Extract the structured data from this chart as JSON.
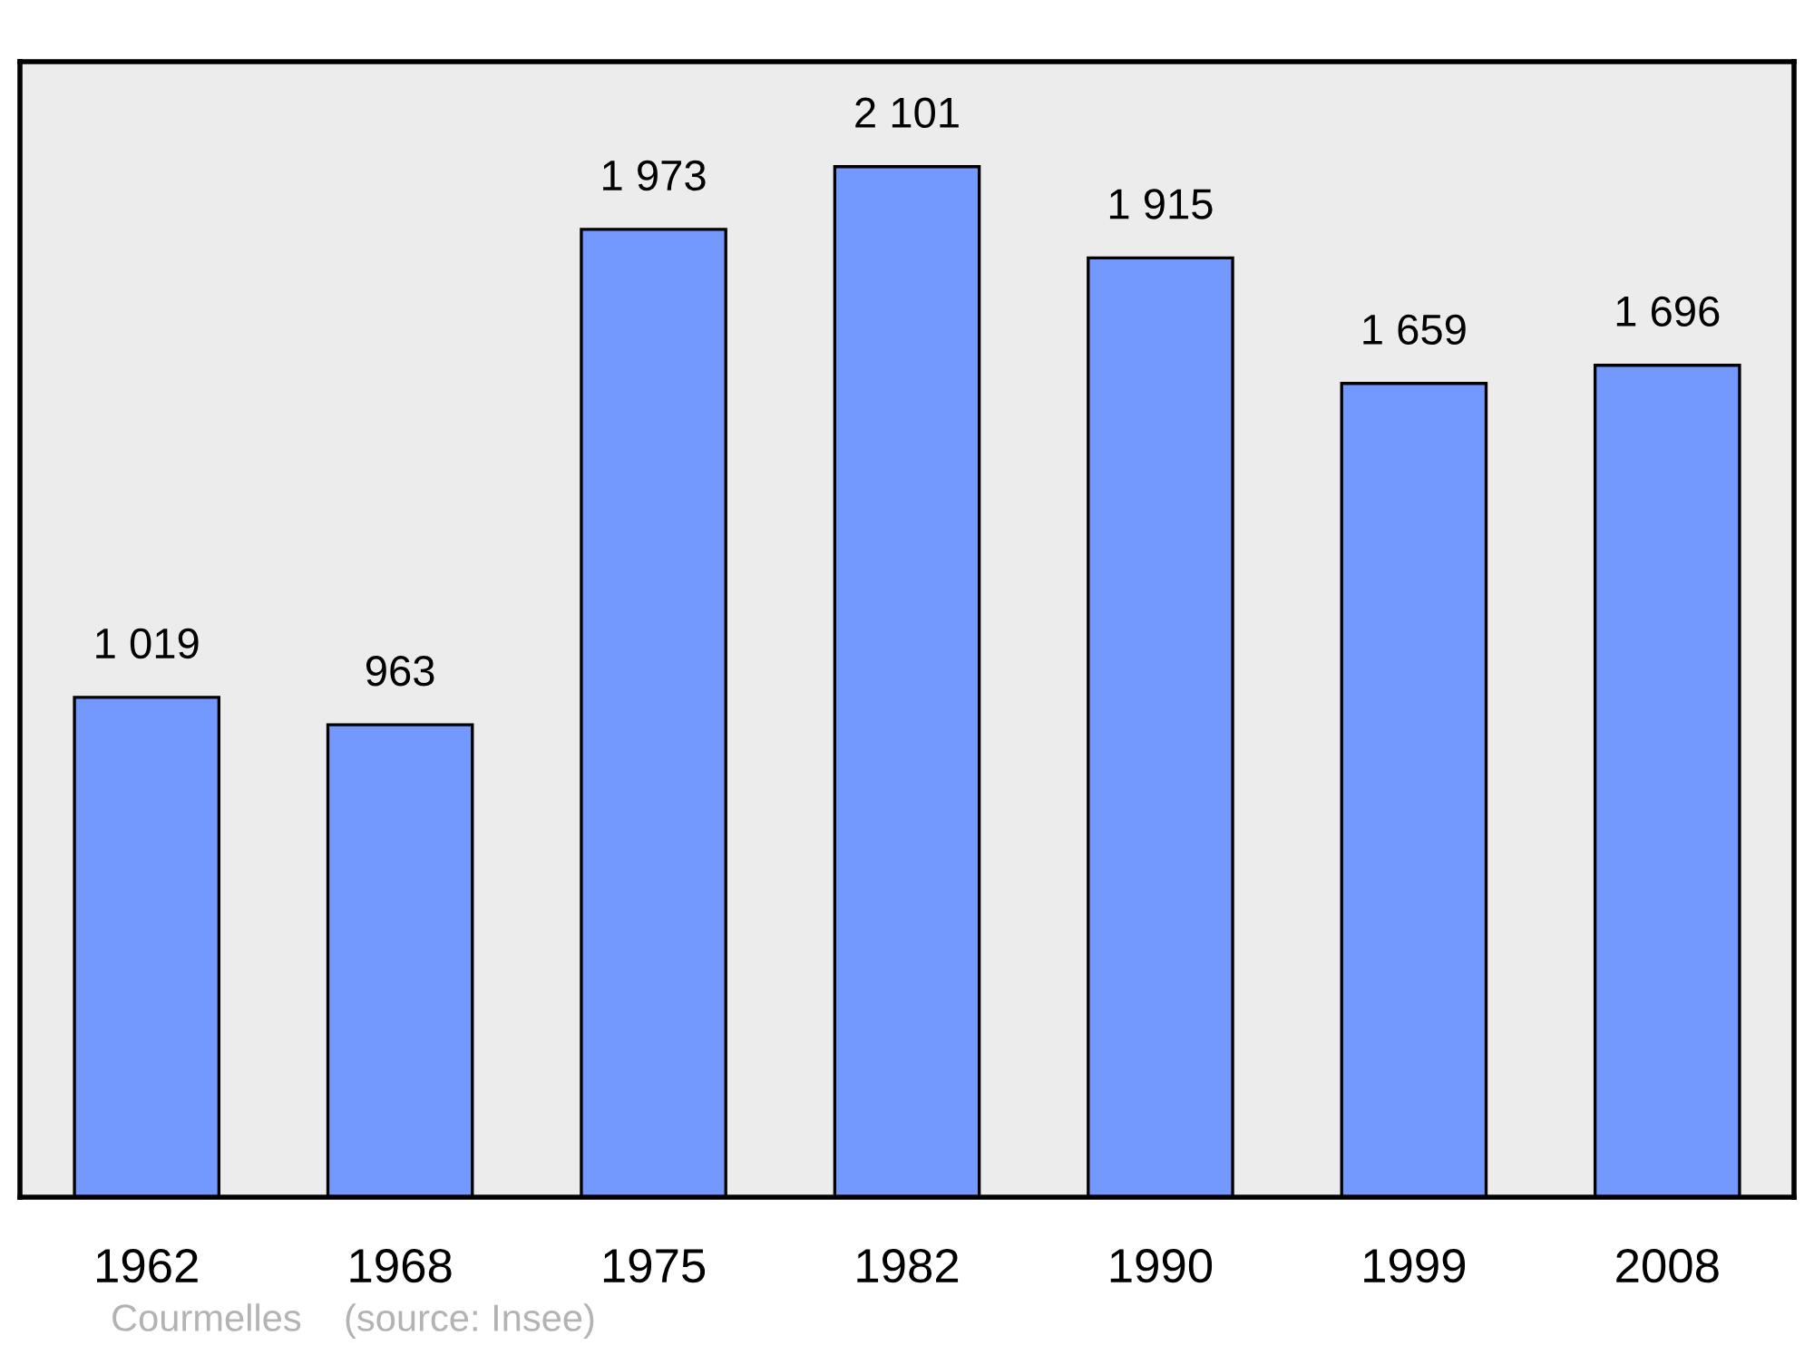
{
  "chart_data": {
    "type": "bar",
    "categories": [
      "1962",
      "1968",
      "1975",
      "1982",
      "1990",
      "1999",
      "2008"
    ],
    "values": [
      1019,
      963,
      1973,
      2101,
      1915,
      1659,
      1696
    ],
    "value_labels": [
      "1 019",
      "963",
      "1 973",
      "2 101",
      "1 915",
      "1 659",
      "1 696"
    ],
    "color": "#7399ff",
    "ylim": [
      0,
      2315
    ],
    "tick_labels": "x",
    "grid": false,
    "legend": false,
    "annotations": [
      "Courmelles    (source: Insee)"
    ]
  }
}
